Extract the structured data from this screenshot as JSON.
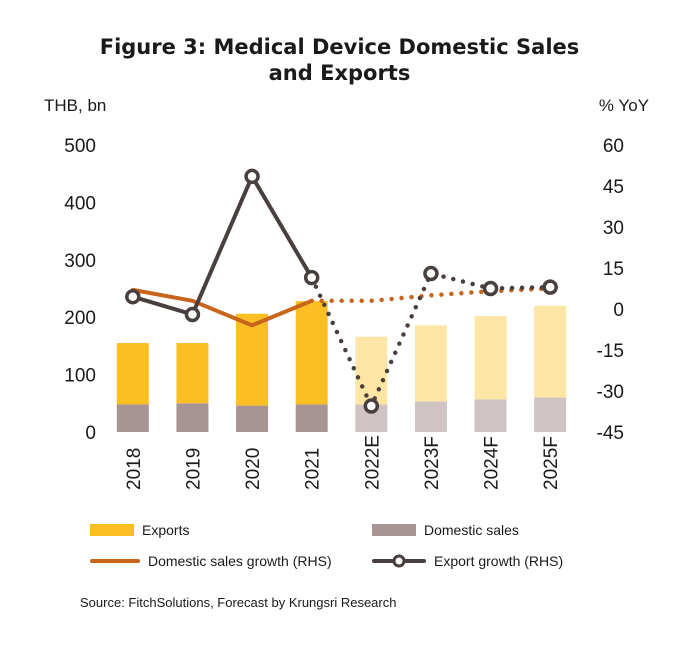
{
  "title_line1": "Figure 3:  Medical Device Domestic Sales",
  "title_line2": "and Exports",
  "source": "Source: FitchSolutions, Forecast by Krungsri Research",
  "colors": {
    "exports_actual": "#FBBF24",
    "exports_forecast": "#FDE6A5",
    "domestic_actual": "#A89494",
    "domestic_forecast": "#CFC3C3",
    "domestic_growth": "#C8651B",
    "export_growth": "#4A3F3F"
  },
  "chart_data": {
    "type": "bar",
    "categories": [
      "2018",
      "2019",
      "2020",
      "2021",
      "2022E",
      "2023F",
      "2024F",
      "2025F"
    ],
    "forecast_from_index": 4,
    "series": [
      {
        "name": "Exports",
        "type": "bar",
        "stacked": true,
        "axis": "left",
        "values": [
          107,
          105,
          160,
          180,
          118,
          133,
          145,
          160
        ]
      },
      {
        "name": "Domestic sales",
        "type": "bar",
        "stacked": true,
        "axis": "left",
        "values": [
          48,
          50,
          46,
          48,
          48,
          53,
          57,
          60
        ]
      },
      {
        "name": "Domestic sales growth (RHS)",
        "type": "line",
        "axis": "right",
        "values": [
          7,
          3,
          -6,
          3,
          3,
          5,
          6.5,
          7.5
        ]
      },
      {
        "name": "Export growth (RHS)",
        "type": "line",
        "axis": "right",
        "markers": true,
        "values": [
          4.5,
          -2,
          48.5,
          11.5,
          -35.5,
          13,
          7.5,
          8
        ]
      }
    ],
    "left_axis": {
      "label": "THB, bn",
      "ylim": [
        0,
        500
      ],
      "ticks": [
        "0",
        "100",
        "200",
        "300",
        "400",
        "500"
      ]
    },
    "right_axis": {
      "label": "% YoY",
      "ylim": [
        -45,
        60
      ],
      "ticks": [
        "-45",
        "-30",
        "-15",
        "0",
        "15",
        "30",
        "45",
        "60"
      ]
    },
    "legend_position": "bottom",
    "grid": false
  }
}
